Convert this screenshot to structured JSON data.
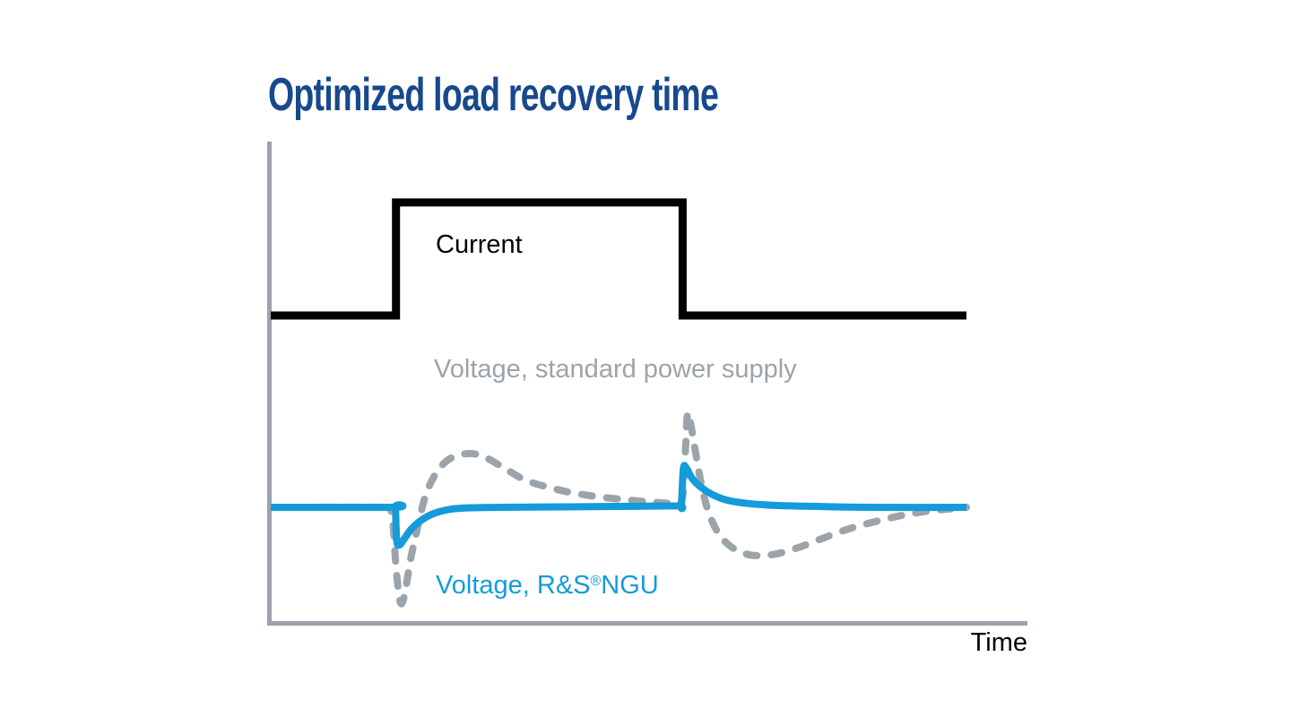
{
  "header": {
    "title": "Optimized load recovery time"
  },
  "labels": {
    "current": "Current",
    "standard": "Voltage, standard power supply",
    "ngu_prefix": "Voltage, R&S",
    "ngu_reg": "®",
    "ngu_suffix": "NGU",
    "time": "Time"
  },
  "colors": {
    "title": "#17498C",
    "current": "#000000",
    "standard": "#9CA4AB",
    "ngu": "#149BD9",
    "axis": "#9AA3AB",
    "time_label": "#000000"
  },
  "chart_data": {
    "type": "line",
    "title": "Optimized load recovery time",
    "xlabel": "Time",
    "ylabel": "",
    "x_range": [
      0,
      100
    ],
    "y_range": [
      0,
      10
    ],
    "grid": false,
    "legend_position": "inline-annotations",
    "axes": {
      "x_visible": true,
      "y_visible": true,
      "ticks": "none"
    },
    "series": [
      {
        "name": "Voltage, standard power supply",
        "color_key": "standard",
        "line_style": "dashed",
        "smooth": true,
        "points": [
          [
            0,
            2.43
          ],
          [
            16.8,
            2.43
          ],
          [
            17.2,
            2.4
          ],
          [
            17.6,
            2.05
          ],
          [
            18.0,
            1.2
          ],
          [
            18.5,
            0.55
          ],
          [
            18.9,
            0.45
          ],
          [
            19.4,
            0.75
          ],
          [
            20.1,
            1.35
          ],
          [
            21.0,
            1.95
          ],
          [
            22.2,
            2.65
          ],
          [
            23.6,
            3.1
          ],
          [
            25.2,
            3.38
          ],
          [
            27.0,
            3.51
          ],
          [
            29.1,
            3.54
          ],
          [
            31.2,
            3.44
          ],
          [
            33.8,
            3.22
          ],
          [
            36.5,
            3.0
          ],
          [
            39.5,
            2.86
          ],
          [
            43,
            2.74
          ],
          [
            47,
            2.65
          ],
          [
            51.5,
            2.58
          ],
          [
            55.5,
            2.53
          ],
          [
            58.3,
            2.52
          ],
          [
            59.2,
            2.65
          ],
          [
            59.6,
            3.6
          ],
          [
            59.9,
            4.36
          ],
          [
            60.3,
            4.2
          ],
          [
            61.0,
            3.62
          ],
          [
            61.9,
            2.9
          ],
          [
            63.0,
            2.3
          ],
          [
            64.5,
            1.86
          ],
          [
            66.3,
            1.6
          ],
          [
            68.2,
            1.47
          ],
          [
            70.0,
            1.43
          ],
          [
            72.5,
            1.46
          ],
          [
            75.5,
            1.58
          ],
          [
            79.0,
            1.77
          ],
          [
            83.0,
            1.98
          ],
          [
            87.0,
            2.14
          ],
          [
            91.0,
            2.27
          ],
          [
            95.0,
            2.36
          ],
          [
            100,
            2.43
          ]
        ]
      },
      {
        "name": "Voltage, R&S®NGU",
        "color_key": "ngu",
        "line_style": "solid",
        "smooth": true,
        "points": [
          [
            0,
            2.43
          ],
          [
            17.6,
            2.43
          ],
          [
            17.9,
            2.43
          ],
          [
            18.1,
            1.75
          ],
          [
            18.5,
            1.65
          ],
          [
            19.2,
            1.78
          ],
          [
            20.2,
            1.98
          ],
          [
            21.6,
            2.16
          ],
          [
            23.4,
            2.3
          ],
          [
            25.8,
            2.39
          ],
          [
            28.5,
            2.42
          ],
          [
            33,
            2.43
          ],
          [
            42,
            2.44
          ],
          [
            52,
            2.45
          ],
          [
            58.6,
            2.46
          ],
          [
            59.0,
            2.46
          ],
          [
            59.3,
            3.22
          ],
          [
            59.7,
            3.25
          ],
          [
            60.6,
            3.02
          ],
          [
            61.8,
            2.85
          ],
          [
            63.4,
            2.7
          ],
          [
            65.5,
            2.58
          ],
          [
            68.5,
            2.51
          ],
          [
            72.5,
            2.47
          ],
          [
            78,
            2.45
          ],
          [
            86,
            2.43
          ],
          [
            100,
            2.43
          ]
        ]
      },
      {
        "name": "Current",
        "color_key": "current",
        "line_style": "solid",
        "smooth": false,
        "points": [
          [
            0,
            6.4
          ],
          [
            18.0,
            6.4
          ],
          [
            18.0,
            8.74
          ],
          [
            59.2,
            8.74
          ],
          [
            59.2,
            6.4
          ],
          [
            100,
            6.4
          ]
        ]
      }
    ]
  }
}
